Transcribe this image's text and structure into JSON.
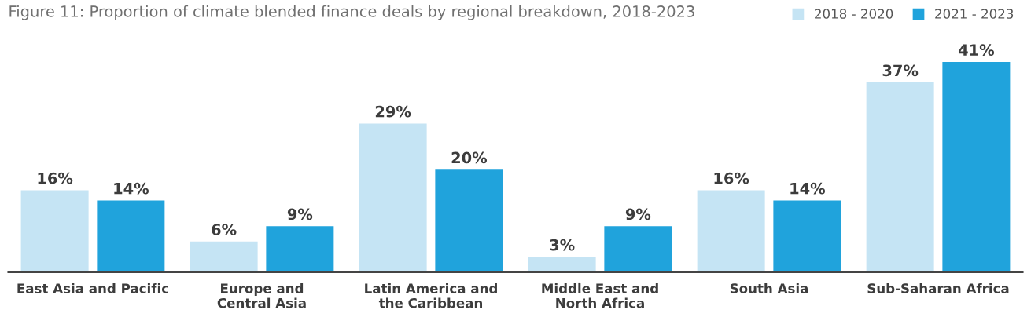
{
  "chart_data": {
    "type": "bar",
    "title": "Figure 11: Proportion of climate blended finance deals by regional breakdown, 2018-2023",
    "categories": [
      "East Asia and Pacific",
      "Europe and\nCentral Asia",
      "Latin America and\nthe Caribbean",
      "Middle East and\nNorth Africa",
      "South Asia",
      "Sub-Saharan Africa"
    ],
    "series": [
      {
        "name": "2018 - 2020",
        "color": "#c5e4f4",
        "values": [
          16,
          6,
          29,
          3,
          16,
          37
        ],
        "value_labels": [
          "16%",
          "6%",
          "29%",
          "3%",
          "16%",
          "37%"
        ]
      },
      {
        "name": "2021 - 2023",
        "color": "#20a3dc",
        "values": [
          14,
          9,
          20,
          9,
          14,
          41
        ],
        "value_labels": [
          "14%",
          "9%",
          "20%",
          "9%",
          "14%",
          "41%"
        ]
      }
    ],
    "legend": "top right",
    "grid": false
  }
}
